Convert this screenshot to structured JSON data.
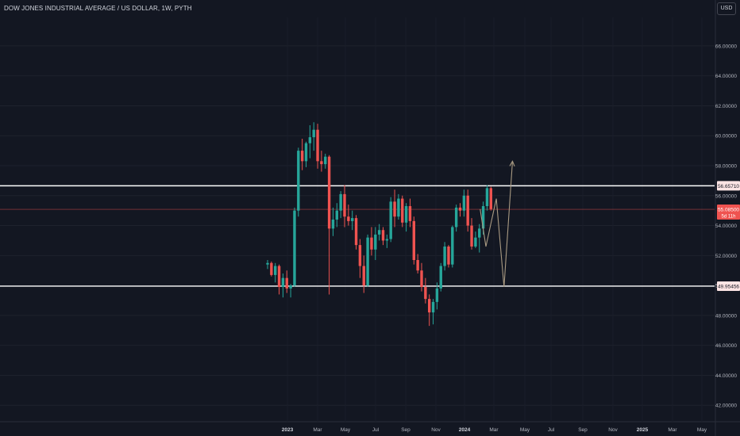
{
  "header": {
    "symbol_title": "DOW JONES INDUSTRIAL AVERAGE / US DOLLAR, 1W, PYTH",
    "currency_button": "USD"
  },
  "colors": {
    "background": "#131722",
    "up_candle": "#26a69a",
    "down_candle": "#ef5350",
    "level_line": "#ffffff",
    "level_label_bg": "#fce4e4",
    "projection": "#a99a82",
    "price_label_bg": "#ef5350",
    "axis_text": "#b2b5be"
  },
  "chart_data": {
    "type": "candlestick",
    "y_axis": {
      "ylim": [
        40.9,
        67.9
      ],
      "ticks": [
        "42.00000",
        "44.00000",
        "46.00000",
        "48.00000",
        "50.00000",
        "52.00000",
        "54.00000",
        "56.00000",
        "58.00000",
        "60.00000",
        "62.00000",
        "64.00000",
        "66.00000"
      ]
    },
    "x_axis": {
      "tick_labels": [
        "2023",
        "Mar",
        "May",
        "Jul",
        "Sep",
        "Nov",
        "2024",
        "Mar",
        "May",
        "Jul",
        "Sep",
        "Nov",
        "2025",
        "Mar",
        "May"
      ],
      "bold_labels": [
        "2023",
        "2024",
        "2025"
      ]
    },
    "candles": [
      [
        51.4,
        51.7,
        51.1,
        51.5
      ],
      [
        51.5,
        51.6,
        50.6,
        50.7
      ],
      [
        50.7,
        51.5,
        50.2,
        51.3
      ],
      [
        51.3,
        51.4,
        49.4,
        49.9
      ],
      [
        49.9,
        50.8,
        49.2,
        50.5
      ],
      [
        50.5,
        51.0,
        49.5,
        49.8
      ],
      [
        49.8,
        50.1,
        49.2,
        50.0
      ],
      [
        50.0,
        55.2,
        49.9,
        55.0
      ],
      [
        55.0,
        59.2,
        54.6,
        59.0
      ],
      [
        59.0,
        59.8,
        57.7,
        58.3
      ],
      [
        58.3,
        59.6,
        57.9,
        59.5
      ],
      [
        59.5,
        60.7,
        58.5,
        59.9
      ],
      [
        59.9,
        60.9,
        59.0,
        60.4
      ],
      [
        60.4,
        60.8,
        57.8,
        58.3
      ],
      [
        58.3,
        59.0,
        57.6,
        58.1
      ],
      [
        58.1,
        58.8,
        57.8,
        58.6
      ],
      [
        58.6,
        58.7,
        49.4,
        53.8
      ],
      [
        53.8,
        55.2,
        53.3,
        54.4
      ],
      [
        54.4,
        55.5,
        53.9,
        55.0
      ],
      [
        55.0,
        56.3,
        54.5,
        56.1
      ],
      [
        56.1,
        56.7,
        53.9,
        54.6
      ],
      [
        54.6,
        55.4,
        54.0,
        54.3
      ],
      [
        54.3,
        55.0,
        53.7,
        54.5
      ],
      [
        54.5,
        54.7,
        52.4,
        52.7
      ],
      [
        52.7,
        53.1,
        50.5,
        51.3
      ],
      [
        51.3,
        52.0,
        49.5,
        50.0
      ],
      [
        50.0,
        53.4,
        49.9,
        53.2
      ],
      [
        53.2,
        53.9,
        52.0,
        52.4
      ],
      [
        52.4,
        53.9,
        51.7,
        53.4
      ],
      [
        53.4,
        54.1,
        53.0,
        53.7
      ],
      [
        53.7,
        53.9,
        52.7,
        53.0
      ],
      [
        53.0,
        53.4,
        52.5,
        53.1
      ],
      [
        53.1,
        55.9,
        52.9,
        55.6
      ],
      [
        55.6,
        56.4,
        53.9,
        54.6
      ],
      [
        54.6,
        56.1,
        54.4,
        55.8
      ],
      [
        55.8,
        56.0,
        53.9,
        54.2
      ],
      [
        54.2,
        55.5,
        53.6,
        55.3
      ],
      [
        55.3,
        55.8,
        53.9,
        54.3
      ],
      [
        54.3,
        54.6,
        51.4,
        51.7
      ],
      [
        51.7,
        52.1,
        50.8,
        51.0
      ],
      [
        51.0,
        51.5,
        49.6,
        49.9
      ],
      [
        49.9,
        50.5,
        48.8,
        49.1
      ],
      [
        49.1,
        49.4,
        47.3,
        48.2
      ],
      [
        48.2,
        49.1,
        47.4,
        48.9
      ],
      [
        48.9,
        50.2,
        48.4,
        49.8
      ],
      [
        49.8,
        51.5,
        49.6,
        51.3
      ],
      [
        51.3,
        52.9,
        51.0,
        52.6
      ],
      [
        52.6,
        52.7,
        51.2,
        51.4
      ],
      [
        51.4,
        54.0,
        51.2,
        53.9
      ],
      [
        53.9,
        55.4,
        53.6,
        55.2
      ],
      [
        55.2,
        55.5,
        54.6,
        55.0
      ],
      [
        55.0,
        56.4,
        54.6,
        56.0
      ],
      [
        56.0,
        56.4,
        53.6,
        54.0
      ],
      [
        54.0,
        54.5,
        52.4,
        52.6
      ],
      [
        52.6,
        53.6,
        52.5,
        53.2
      ],
      [
        53.2,
        54.1,
        52.2,
        53.8
      ],
      [
        53.8,
        55.6,
        53.4,
        55.3
      ],
      [
        55.3,
        56.7,
        55.0,
        56.5
      ],
      [
        56.5,
        56.6,
        55.0,
        55.1
      ]
    ],
    "horizontal_levels": [
      {
        "value": 56.6571,
        "label": "56.65710"
      },
      {
        "value": 49.95456,
        "label": "49.95456"
      }
    ],
    "last_price": {
      "value": 55.085,
      "label": "55.08500",
      "countdown": "5d 11h"
    },
    "projection_path": [
      [
        55.2,
        55.1
      ],
      [
        56.7,
        52.6
      ],
      [
        59.4,
        55.8
      ],
      [
        61.4,
        49.9
      ],
      [
        63.6,
        58.3
      ]
    ]
  }
}
